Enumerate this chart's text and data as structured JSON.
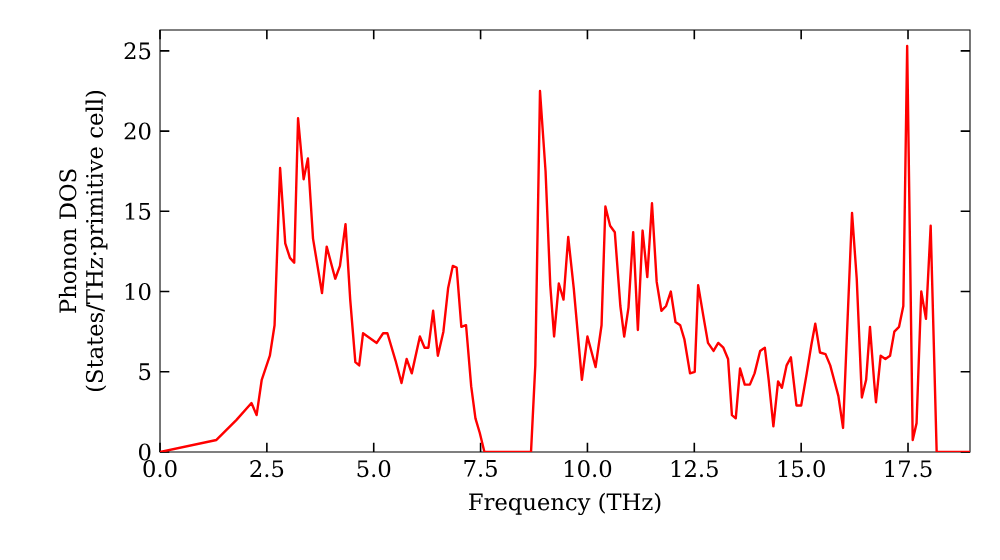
{
  "chart_data": {
    "type": "line",
    "xlabel": "Frequency (THz)",
    "ylabel": "Phonon DOS (States/THz·primitive cell)",
    "color": "#ff0000",
    "x": [
      0,
      1.32,
      1.79,
      2.14,
      2.26,
      2.38,
      2.57,
      2.68,
      2.81,
      2.93,
      3.04,
      3.14,
      3.23,
      3.36,
      3.46,
      3.58,
      3.79,
      3.9,
      4.1,
      4.21,
      4.34,
      4.45,
      4.57,
      4.66,
      4.75,
      5.07,
      5.22,
      5.32,
      5.51,
      5.65,
      5.77,
      5.89,
      6.08,
      6.19,
      6.28,
      6.39,
      6.5,
      6.63,
      6.74,
      6.85,
      6.94,
      7.05,
      7.16,
      7.28,
      7.38,
      7.48,
      7.59,
      8.68,
      8.78,
      8.89,
      9.02,
      9.13,
      9.22,
      9.33,
      9.44,
      9.55,
      9.68,
      9.77,
      9.87,
      10.0,
      10.19,
      10.33,
      10.42,
      10.53,
      10.64,
      10.77,
      10.86,
      10.96,
      11.07,
      11.18,
      11.29,
      11.4,
      11.51,
      11.62,
      11.73,
      11.84,
      11.95,
      12.06,
      12.17,
      12.27,
      12.4,
      12.51,
      12.59,
      12.71,
      12.82,
      12.95,
      13.06,
      13.18,
      13.29,
      13.38,
      13.47,
      13.57,
      13.68,
      13.8,
      13.91,
      14.04,
      14.15,
      14.24,
      14.35,
      14.46,
      14.55,
      14.66,
      14.76,
      14.89,
      15.0,
      15.13,
      15.24,
      15.33,
      15.44,
      15.57,
      15.68,
      15.79,
      15.87,
      15.98,
      16.19,
      16.3,
      16.42,
      16.52,
      16.61,
      16.71,
      16.75,
      16.86,
      16.97,
      17.08,
      17.18,
      17.29,
      17.39,
      17.48,
      17.61,
      17.7,
      17.81,
      17.92,
      18.03,
      18.17,
      18.95
    ],
    "values": [
      0,
      0.75,
      2.0,
      3.05,
      2.3,
      4.5,
      6.0,
      7.9,
      17.7,
      13.0,
      12.1,
      11.8,
      20.8,
      17.0,
      18.3,
      13.3,
      9.9,
      12.8,
      10.8,
      11.6,
      14.2,
      9.5,
      5.6,
      5.4,
      7.4,
      6.8,
      7.4,
      7.4,
      5.7,
      4.3,
      5.8,
      4.9,
      7.2,
      6.5,
      6.5,
      8.8,
      6.0,
      7.5,
      10.2,
      11.6,
      11.5,
      7.8,
      7.9,
      4.1,
      2.1,
      1.2,
      0,
      0,
      5.4,
      22.5,
      17.5,
      10.4,
      7.2,
      10.5,
      9.5,
      13.4,
      10.2,
      7.5,
      4.5,
      7.2,
      5.3,
      7.9,
      15.3,
      14.1,
      13.7,
      9.1,
      7.2,
      9.0,
      13.7,
      7.6,
      13.8,
      10.9,
      15.5,
      10.6,
      8.8,
      9.1,
      10.0,
      8.1,
      7.9,
      7.0,
      4.9,
      5.0,
      10.4,
      8.5,
      6.8,
      6.3,
      6.8,
      6.5,
      5.8,
      2.3,
      2.1,
      5.2,
      4.2,
      4.2,
      4.9,
      6.3,
      6.5,
      4.5,
      1.6,
      4.4,
      4.0,
      5.4,
      5.9,
      2.9,
      2.9,
      4.9,
      6.7,
      8.0,
      6.2,
      6.1,
      5.4,
      4.3,
      3.5,
      1.5,
      14.9,
      10.8,
      3.4,
      4.5,
      7.8,
      4.3,
      3.1,
      6.0,
      5.8,
      6.0,
      7.5,
      7.8,
      9.1,
      25.3,
      0.75,
      1.8,
      10.0,
      8.3,
      14.1,
      0,
      0
    ],
    "xlim": [
      0,
      18.95
    ],
    "ylim": [
      0,
      26.3
    ],
    "xticks": [
      {
        "value": 0,
        "label": "0.0"
      },
      {
        "value": 2.5,
        "label": "2.5"
      },
      {
        "value": 5,
        "label": "5.0"
      },
      {
        "value": 7.5,
        "label": "7.5"
      },
      {
        "value": 10,
        "label": "10.0"
      },
      {
        "value": 12.5,
        "label": "12.5"
      },
      {
        "value": 15,
        "label": "15.0"
      },
      {
        "value": 17.5,
        "label": "17.5"
      }
    ],
    "yticks": [
      0,
      5,
      10,
      15,
      20,
      25
    ]
  }
}
